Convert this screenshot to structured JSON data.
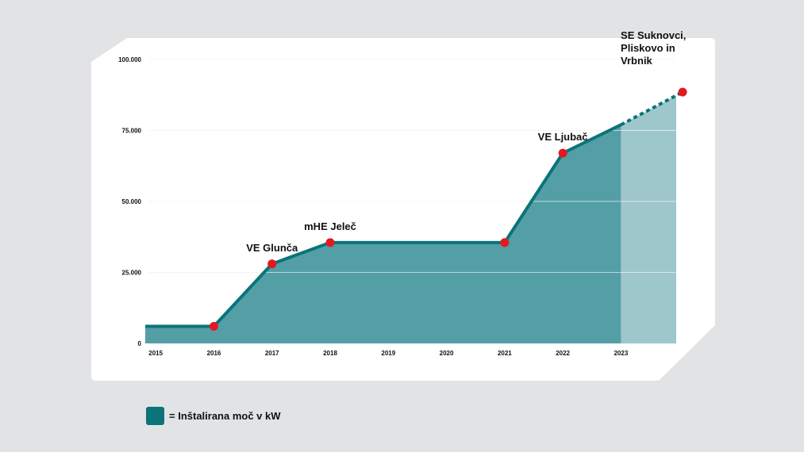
{
  "chart_data": {
    "type": "area",
    "title": "",
    "xlabel": "",
    "ylabel": "",
    "x_ticks": [
      "2015",
      "2016",
      "2017",
      "2018",
      "2019",
      "2020",
      "2021",
      "2022",
      "2023"
    ],
    "y_ticks": [
      {
        "value": 0,
        "label": "0"
      },
      {
        "value": 25000,
        "label": "25.000"
      },
      {
        "value": 50000,
        "label": "50.000"
      },
      {
        "value": 75000,
        "label": "75.000"
      },
      {
        "value": 100000,
        "label": "100.000"
      }
    ],
    "xlim": [
      2014.82,
      2023.95
    ],
    "ylim": [
      0,
      100000
    ],
    "grid": true,
    "series": [
      {
        "style": "solid",
        "points": [
          [
            2014.82,
            6000
          ],
          [
            2016,
            6000
          ],
          [
            2017,
            28000
          ],
          [
            2018,
            35500
          ],
          [
            2021,
            35500
          ],
          [
            2022,
            67000
          ],
          [
            2023,
            77000
          ]
        ]
      },
      {
        "style": "dashed-projection",
        "points": [
          [
            2023,
            77000
          ],
          [
            2024.06,
            88500
          ]
        ]
      }
    ],
    "markers": [
      {
        "x": 2016,
        "y": 6000,
        "label": []
      },
      {
        "x": 2017,
        "y": 28000,
        "label": [
          "VE Glunča"
        ]
      },
      {
        "x": 2018,
        "y": 35500,
        "label": [
          "mHE Jeleč"
        ]
      },
      {
        "x": 2021,
        "y": 35500,
        "label": []
      },
      {
        "x": 2022,
        "y": 67000,
        "label": [
          "VE Ljubač"
        ]
      },
      {
        "x": 2024.06,
        "y": 88500,
        "label": [
          "SE Suknovci,",
          "Pliskovo in",
          "Vrbnik"
        ]
      }
    ],
    "legend": {
      "label": "= Inštalirana moč v kW",
      "position": "bottom-left"
    },
    "colors": {
      "fill": "#549ea6",
      "line": "#0a7479",
      "projection_fill": "#9ec7cc",
      "marker": "#e3191f",
      "background": "#e2e3e5",
      "card": "#ffffff"
    }
  }
}
